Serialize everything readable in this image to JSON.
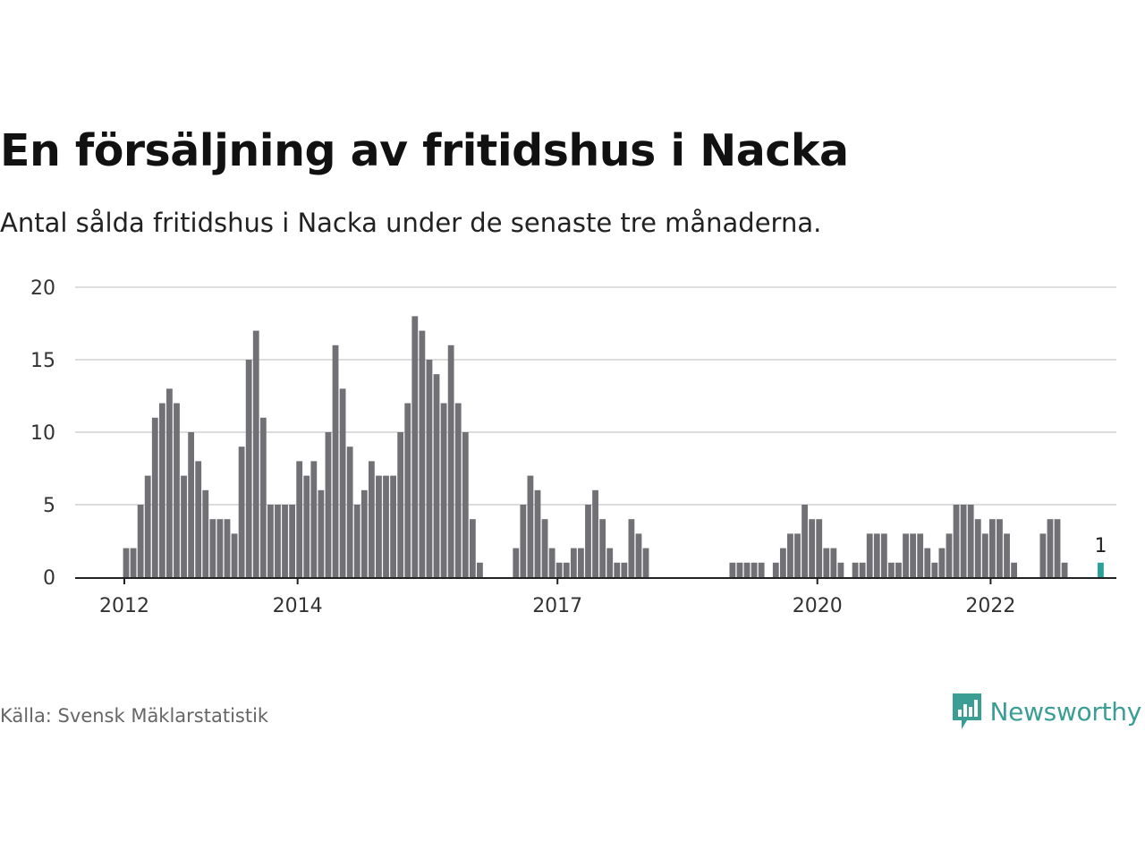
{
  "header": {
    "title": "En försäljning av fritidshus i Nacka",
    "subtitle": "Antal sålda fritidshus i Nacka under de senaste tre månaderna."
  },
  "footer": {
    "source": "Källa: Svensk Mäklarstatistik",
    "brand": "Newsworthy",
    "brand_icon": "bar-chart-speech-bubble-icon"
  },
  "colors": {
    "bar": "#707075",
    "highlight": "#2aa198",
    "grid": "#dddddd",
    "brand": "#3a9e94"
  },
  "chart_data": {
    "type": "bar",
    "ylim": [
      0,
      20
    ],
    "yticks": [
      0,
      5,
      10,
      15,
      20
    ],
    "xtick_labels": [
      "2012",
      "2014",
      "2017",
      "2020",
      "2022"
    ],
    "grid": true,
    "highlight_label": "1",
    "series": [
      {
        "values": [
          2,
          2,
          5,
          7,
          11,
          12,
          13,
          12,
          7,
          10,
          8,
          6,
          4,
          4,
          4,
          3,
          9,
          15,
          17,
          11,
          5,
          5,
          5,
          5,
          8,
          7,
          8,
          6,
          10,
          16,
          13,
          9,
          5,
          6,
          8,
          7,
          7,
          7,
          10,
          12,
          18,
          17,
          15,
          14,
          12,
          16,
          12,
          10,
          4,
          1,
          0,
          0,
          0,
          0,
          2,
          5,
          7,
          6,
          4,
          2,
          1,
          1,
          2,
          2,
          5,
          6,
          4,
          2,
          1,
          1,
          4,
          3,
          2,
          0,
          0,
          0,
          0,
          0,
          0,
          0,
          0,
          0,
          0,
          0,
          1,
          1,
          1,
          1,
          1,
          0,
          1,
          2,
          3,
          3,
          5,
          4,
          4,
          2,
          2,
          1,
          0,
          1,
          1,
          3,
          3,
          3,
          1,
          1,
          3,
          3,
          3,
          2,
          1,
          2,
          3,
          5,
          5,
          5,
          4,
          3,
          4,
          4,
          3,
          1,
          0,
          0,
          0,
          3,
          4,
          4,
          1,
          0,
          0,
          0,
          0,
          1
        ],
        "highlight_last": true
      }
    ]
  }
}
